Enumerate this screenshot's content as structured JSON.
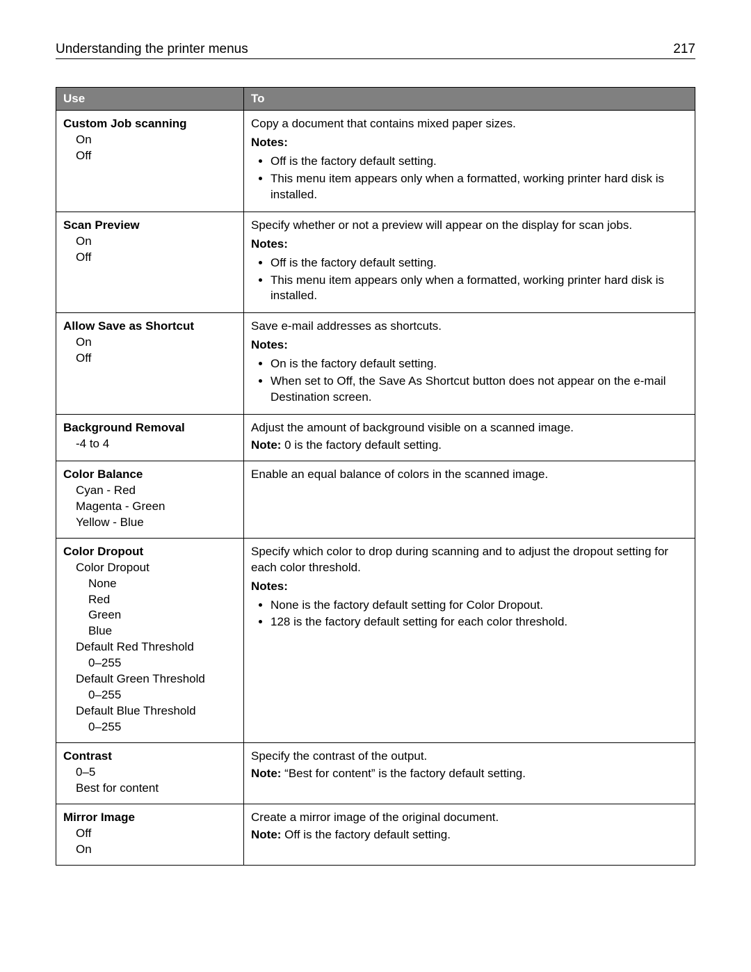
{
  "header": {
    "title": "Understanding the printer menus",
    "page_number": "217"
  },
  "table": {
    "col_use": "Use",
    "col_to": "To",
    "rows": [
      {
        "use_title": "Custom Job scanning",
        "use_options": [
          {
            "text": "On",
            "level": 1
          },
          {
            "text": "Off",
            "level": 1
          }
        ],
        "to_desc": "Copy a document that contains mixed paper sizes.",
        "notes_label": "Notes:",
        "notes": [
          "Off is the factory default setting.",
          "This menu item appears only when a formatted, working printer hard disk is installed."
        ]
      },
      {
        "use_title": "Scan Preview",
        "use_options": [
          {
            "text": "On",
            "level": 1
          },
          {
            "text": "Off",
            "level": 1
          }
        ],
        "to_desc": "Specify whether or not a preview will appear on the display for scan jobs.",
        "notes_label": "Notes:",
        "notes": [
          "Off is the factory default setting.",
          "This menu item appears only when a formatted, working printer hard disk is installed."
        ]
      },
      {
        "use_title": "Allow Save as Shortcut",
        "use_options": [
          {
            "text": "On",
            "level": 1
          },
          {
            "text": "Off",
            "level": 1
          }
        ],
        "to_desc": "Save e-mail addresses as shortcuts.",
        "notes_label": "Notes:",
        "notes": [
          "On is the factory default setting.",
          "When set to Off, the Save As Shortcut button does not appear on the e-mail Destination screen."
        ]
      },
      {
        "use_title": "Background Removal",
        "use_options": [
          {
            "text": "-4 to 4",
            "level": 1
          }
        ],
        "to_desc": "Adjust the amount of background visible on a scanned image.",
        "single_note_label": "Note:",
        "single_note_text": " 0 is the factory default setting."
      },
      {
        "use_title": "Color Balance",
        "use_options": [
          {
            "text": "Cyan - Red",
            "level": 1
          },
          {
            "text": "Magenta - Green",
            "level": 1
          },
          {
            "text": "Yellow - Blue",
            "level": 1
          }
        ],
        "to_desc": "Enable an equal balance of colors in the scanned image."
      },
      {
        "use_title": "Color Dropout",
        "use_options": [
          {
            "text": "Color Dropout",
            "level": 1
          },
          {
            "text": "None",
            "level": 2
          },
          {
            "text": "Red",
            "level": 2
          },
          {
            "text": "Green",
            "level": 2
          },
          {
            "text": "Blue",
            "level": 2
          },
          {
            "text": "Default Red Threshold",
            "level": 1
          },
          {
            "text": "0–255",
            "level": 2
          },
          {
            "text": "Default Green Threshold",
            "level": 1
          },
          {
            "text": "0–255",
            "level": 2
          },
          {
            "text": "Default Blue Threshold",
            "level": 1
          },
          {
            "text": "0–255",
            "level": 2
          }
        ],
        "to_desc": "Specify which color to drop during scanning and to adjust the dropout setting for each color threshold.",
        "notes_label": "Notes:",
        "notes": [
          "None is the factory default setting for Color Dropout.",
          "128 is the factory default setting for each color threshold."
        ]
      },
      {
        "use_title": "Contrast",
        "use_options": [
          {
            "text": "0–5",
            "level": 1
          },
          {
            "text": "Best for content",
            "level": 1
          }
        ],
        "to_desc": "Specify the contrast of the output.",
        "single_note_label": "Note:",
        "single_note_text": " “Best for content” is the factory default setting."
      },
      {
        "use_title": "Mirror Image",
        "use_options": [
          {
            "text": "Off",
            "level": 1
          },
          {
            "text": "On",
            "level": 1
          }
        ],
        "to_desc": "Create a mirror image of the original document.",
        "single_note_label": "Note:",
        "single_note_text": " Off is the factory default setting."
      }
    ]
  }
}
